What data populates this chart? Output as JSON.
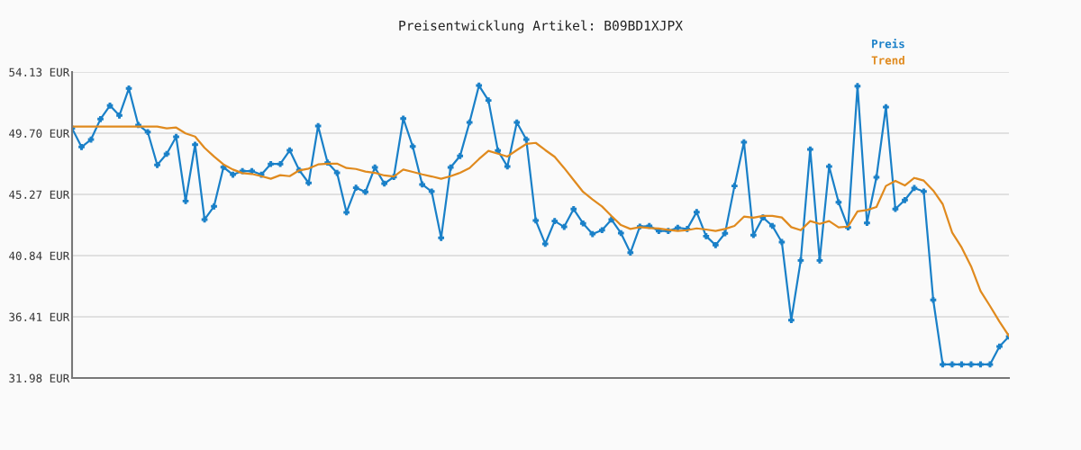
{
  "chart_data": {
    "type": "line",
    "title": "Preisentwicklung Artikel: B09BD1XJPX",
    "categories": [
      null,
      null,
      null,
      null,
      null,
      null,
      null,
      null,
      null,
      null,
      null,
      null,
      null,
      null,
      null,
      null,
      null,
      null,
      null,
      null,
      null,
      null,
      null,
      null,
      null,
      null,
      null,
      null,
      null,
      null,
      null,
      null,
      null,
      null,
      null,
      null,
      null,
      null,
      null,
      null,
      null,
      null,
      null,
      null,
      null,
      null,
      null,
      null,
      null,
      null,
      null,
      null,
      null,
      null,
      null,
      null,
      null,
      null,
      null,
      null,
      null,
      null,
      null,
      null,
      null,
      null,
      null,
      null,
      null,
      null,
      null,
      null,
      null,
      null,
      null,
      null,
      null,
      null,
      null,
      null,
      null,
      null,
      null,
      null,
      null,
      null,
      null,
      null,
      null,
      null,
      null,
      null,
      null,
      null,
      null,
      null,
      null,
      null,
      null,
      null
    ],
    "series": [
      {
        "name": "Preis",
        "color": "#1a80c8",
        "marker": "cross",
        "values": [
          50.05,
          48.7,
          49.24,
          50.72,
          51.7,
          50.98,
          52.94,
          50.29,
          49.78,
          47.4,
          48.2,
          49.44,
          44.79,
          48.87,
          43.45,
          44.4,
          47.24,
          46.7,
          46.96,
          46.96,
          46.7,
          47.47,
          47.47,
          48.46,
          47.03,
          46.1,
          50.22,
          47.57,
          46.83,
          43.97,
          45.75,
          45.45,
          47.22,
          46.05,
          46.53,
          50.76,
          48.74,
          45.99,
          45.48,
          42.12,
          47.22,
          48.05,
          50.48,
          53.15,
          52.07,
          48.44,
          47.29,
          50.48,
          49.24,
          43.38,
          41.69,
          43.34,
          42.92,
          44.21,
          43.17,
          42.4,
          42.68,
          43.45,
          42.47,
          41.05,
          42.94,
          42.99,
          42.62,
          42.62,
          42.86,
          42.77,
          43.99,
          42.25,
          41.6,
          42.45,
          45.88,
          49.05,
          42.32,
          43.6,
          42.99,
          41.82,
          36.17,
          40.49,
          48.53,
          40.49,
          47.29,
          44.7,
          42.88,
          53.11,
          43.2,
          46.51,
          51.59,
          44.21,
          44.86,
          45.73,
          45.48,
          37.63,
          32.96,
          32.96,
          32.96,
          32.96,
          32.96,
          32.96,
          34.26,
          34.98
        ]
      },
      {
        "name": "Trend",
        "color": "#e08a1e",
        "marker": "none",
        "values": [
          50.18,
          50.18,
          50.18,
          50.18,
          50.18,
          50.18,
          50.18,
          50.18,
          50.18,
          50.18,
          50.05,
          50.11,
          49.68,
          49.46,
          48.64,
          48.01,
          47.44,
          47.07,
          46.81,
          46.75,
          46.59,
          46.4,
          46.66,
          46.59,
          47.01,
          47.14,
          47.44,
          47.5,
          47.5,
          47.18,
          47.11,
          46.92,
          46.83,
          46.64,
          46.57,
          47.07,
          46.9,
          46.72,
          46.57,
          46.4,
          46.59,
          46.83,
          47.18,
          47.83,
          48.42,
          48.22,
          48.01,
          48.48,
          48.92,
          49.0,
          48.48,
          47.99,
          47.18,
          46.31,
          45.45,
          44.9,
          44.4,
          43.71,
          43.05,
          42.77,
          42.9,
          42.84,
          42.8,
          42.71,
          42.62,
          42.68,
          42.81,
          42.73,
          42.62,
          42.77,
          42.99,
          43.66,
          43.58,
          43.71,
          43.71,
          43.6,
          42.9,
          42.68,
          43.34,
          43.14,
          43.34,
          42.88,
          42.94,
          44.04,
          44.14,
          44.36,
          45.88,
          46.25,
          45.92,
          46.46,
          46.27,
          45.55,
          44.57,
          42.51,
          41.43,
          40.06,
          38.28,
          37.19,
          36.06,
          35.02
        ]
      }
    ],
    "ylim": [
      31.98,
      54.13
    ],
    "yticks": [
      {
        "value": 31.98,
        "label": "31.98 EUR"
      },
      {
        "value": 36.41,
        "label": "36.41 EUR"
      },
      {
        "value": 40.84,
        "label": "40.84 EUR"
      },
      {
        "value": 45.27,
        "label": "45.27 EUR"
      },
      {
        "value": 49.7,
        "label": "49.70 EUR"
      },
      {
        "value": 54.13,
        "label": "54.13 EUR"
      }
    ],
    "grid": "y",
    "legend": "top right",
    "tick_labels": "y",
    "line_style": "solid"
  }
}
